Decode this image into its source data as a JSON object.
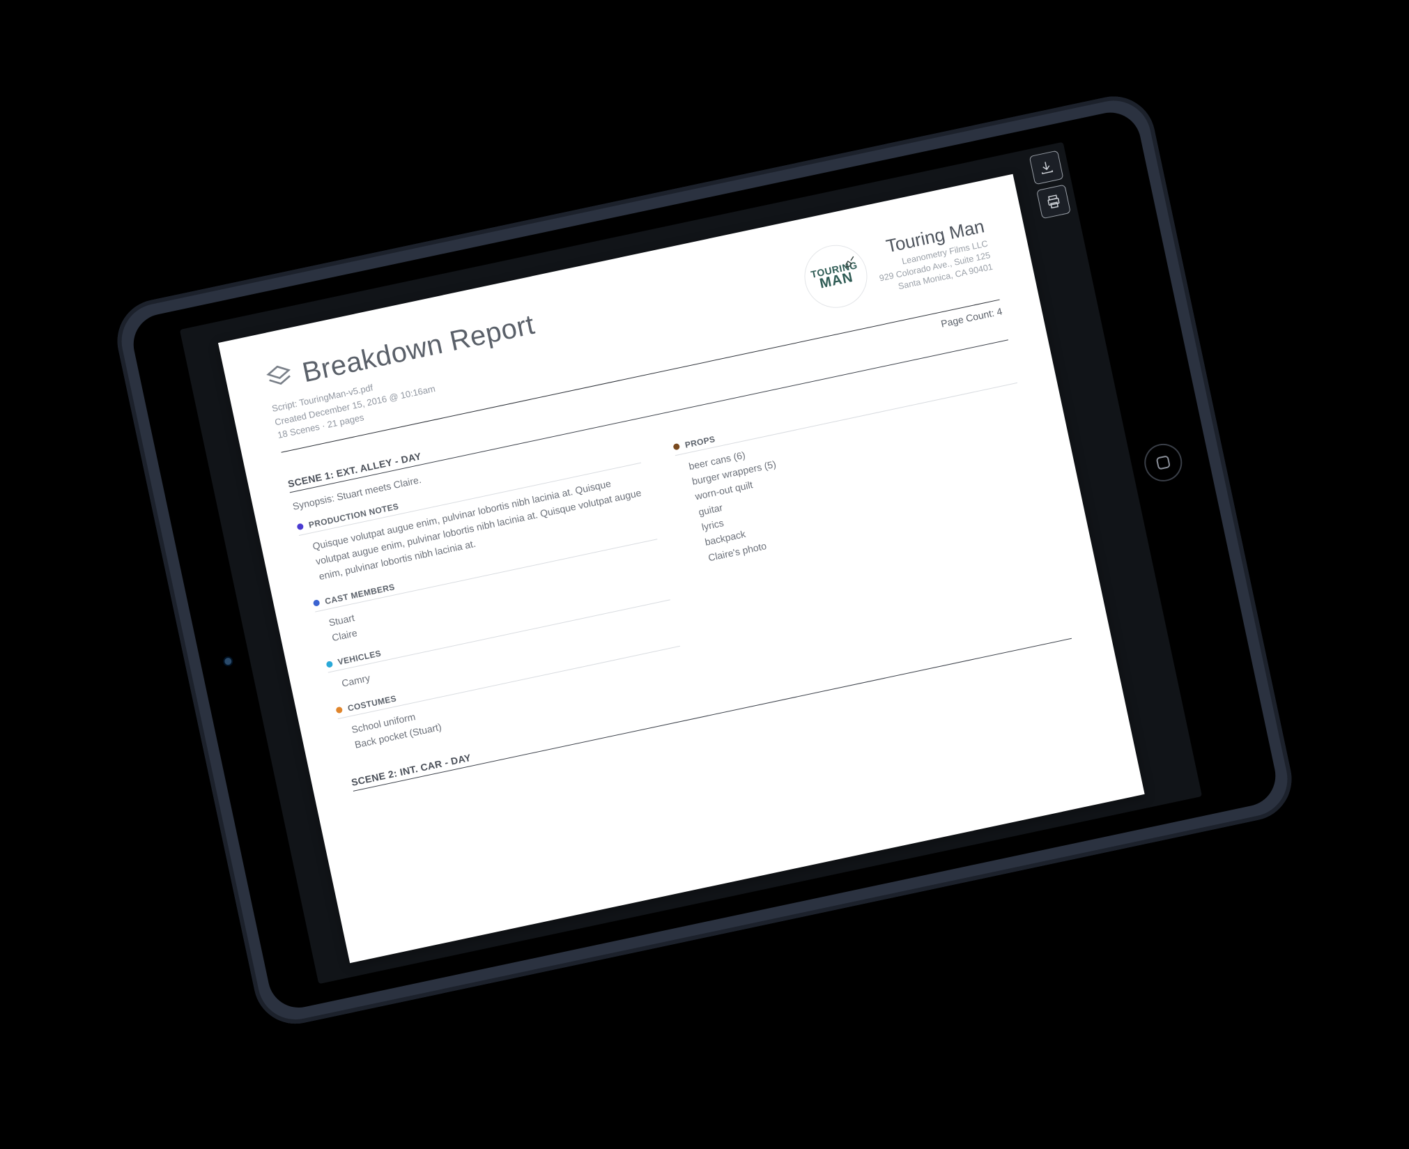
{
  "toolbar": {
    "download_name": "download",
    "print_name": "print"
  },
  "document": {
    "title": "Breakdown Report",
    "meta": {
      "script_line": "Script: TouringMan-v5.pdf",
      "created_line": "Created December 15, 2016 @ 10:16am",
      "stats_line": "18 Scenes  ·  21 pages"
    },
    "page_count_label": "Page Count: 4",
    "company": {
      "title": "Touring Man",
      "subtitle": "Leanometry Films LLC",
      "address1": "929 Colorado Ave., Suite 125",
      "address2": "Santa Monica, CA 90401",
      "logo_line1": "TOURING",
      "logo_line2": "MAN"
    },
    "scenes": [
      {
        "heading": "SCENE 1: EXT. ALLEY - DAY",
        "synopsis": "Synopsis: Stuart meets Claire.",
        "left": [
          {
            "name": "PRODUCTION NOTES",
            "color": "#4a3bd1",
            "type": "paragraph",
            "text": "Quisque volutpat augue enim, pulvinar lobortis nibh lacinia at.  Quisque volutpat augue enim, pulvinar lobortis nibh lacinia at. Quisque volutpat augue enim, pulvinar lobortis nibh lacinia at."
          },
          {
            "name": "CAST MEMBERS",
            "color": "#3b63d1",
            "type": "list",
            "items": [
              "Stuart",
              "Claire"
            ]
          },
          {
            "name": "VEHICLES",
            "color": "#2aa9d8",
            "type": "list",
            "items": [
              "Camry"
            ]
          },
          {
            "name": "COSTUMES",
            "color": "#e0852b",
            "type": "list",
            "items": [
              "School uniform",
              "Back pocket (Stuart)"
            ]
          }
        ],
        "right": [
          {
            "name": "PROPS",
            "color": "#7a4a1f",
            "type": "list",
            "items": [
              "beer cans (6)",
              "burger wrappers (5)",
              "worn-out quilt",
              "guitar",
              "lyrics",
              "backpack",
              "Claire's photo"
            ]
          }
        ]
      },
      {
        "heading": "SCENE 2: INT. CAR - DAY",
        "synopsis": "",
        "left": [],
        "right": []
      }
    ]
  },
  "colors": {
    "page_bg": "#ffffff",
    "text_muted": "#9096a0",
    "text_body": "#6b7079",
    "rule_dark": "#2b2f36"
  }
}
